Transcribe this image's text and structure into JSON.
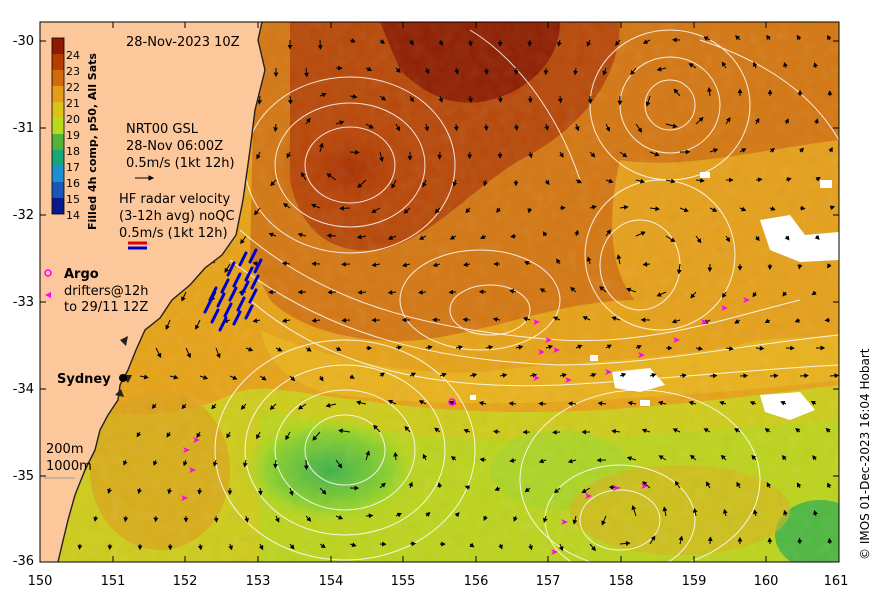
{
  "map": {
    "timestamp": "28-Nov-2023 10Z",
    "credit": "© IMOS 01-Dec-2023 16:04 Hobart",
    "lon_ticks": [
      "150",
      "151",
      "152",
      "153",
      "154",
      "155",
      "156",
      "157",
      "158",
      "159",
      "160",
      "161"
    ],
    "lat_ticks": [
      "-30",
      "-31",
      "-32",
      "-33",
      "-34",
      "-35",
      "-36"
    ],
    "colorbar": {
      "title": "Filled 4h comp, p50, All Sats",
      "labels": [
        "24",
        "23",
        "22",
        "21",
        "20",
        "19",
        "18",
        "17",
        "16",
        "15",
        "14"
      ],
      "colors": [
        "#8b1a00",
        "#b43d00",
        "#d2690a",
        "#e89a1a",
        "#d9c21a",
        "#b8dc1a",
        "#4fb53a",
        "#18a57a",
        "#1d8fd0",
        "#1a55b8",
        "#0a1a8a"
      ]
    },
    "legend": {
      "gsl_title": "NRT00 GSL",
      "gsl_time": "28-Nov 06:00Z",
      "gsl_scale": "0.5m/s (1kt 12h)",
      "hf_title": "HF radar velocity",
      "hf_avg": "(3-12h avg) noQC",
      "hf_scale": "0.5m/s (1kt 12h)",
      "argo_label": "Argo",
      "drifters_label": "drifters@12h",
      "drifters_to": "to 29/11 12Z",
      "depth_200": "200m",
      "depth_1000": "1000m"
    },
    "places": {
      "sydney": "Sydney"
    },
    "colors": {
      "land": "#fcc79b",
      "drifter": "#ff00ff",
      "hf_radar": "#0000cc",
      "hf_legend_red": "#e00000"
    }
  }
}
